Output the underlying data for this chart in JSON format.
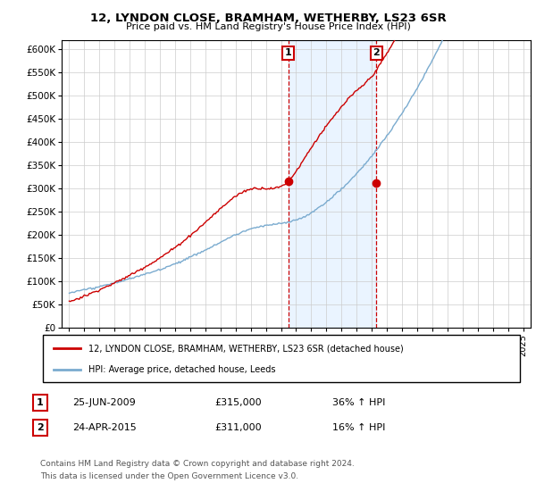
{
  "title": "12, LYNDON CLOSE, BRAMHAM, WETHERBY, LS23 6SR",
  "subtitle": "Price paid vs. HM Land Registry's House Price Index (HPI)",
  "legend_line1": "12, LYNDON CLOSE, BRAMHAM, WETHERBY, LS23 6SR (detached house)",
  "legend_line2": "HPI: Average price, detached house, Leeds",
  "annotation1_label": "1",
  "annotation1_date": "25-JUN-2009",
  "annotation1_price": "£315,000",
  "annotation1_hpi": "36% ↑ HPI",
  "annotation2_label": "2",
  "annotation2_date": "24-APR-2015",
  "annotation2_price": "£311,000",
  "annotation2_hpi": "16% ↑ HPI",
  "footnote1": "Contains HM Land Registry data © Crown copyright and database right 2024.",
  "footnote2": "This data is licensed under the Open Government Licence v3.0.",
  "sale1_x": 2009.48,
  "sale1_y": 315000,
  "sale2_x": 2015.31,
  "sale2_y": 311000,
  "price_line_color": "#cc0000",
  "hpi_line_color": "#7aabcf",
  "shade_color": "#ddeeff",
  "vline_color": "#cc0000",
  "ylim_min": 0,
  "ylim_max": 620000,
  "xlim_min": 1994.5,
  "xlim_max": 2025.5,
  "yticks": [
    0,
    50000,
    100000,
    150000,
    200000,
    250000,
    300000,
    350000,
    400000,
    450000,
    500000,
    550000,
    600000
  ],
  "ytick_labels": [
    "£0",
    "£50K",
    "£100K",
    "£150K",
    "£200K",
    "£250K",
    "£300K",
    "£350K",
    "£400K",
    "£450K",
    "£500K",
    "£550K",
    "£600K"
  ],
  "xticks": [
    1995,
    1996,
    1997,
    1998,
    1999,
    2000,
    2001,
    2002,
    2003,
    2004,
    2005,
    2006,
    2007,
    2008,
    2009,
    2010,
    2011,
    2012,
    2013,
    2014,
    2015,
    2016,
    2017,
    2018,
    2019,
    2020,
    2021,
    2022,
    2023,
    2024,
    2025
  ]
}
